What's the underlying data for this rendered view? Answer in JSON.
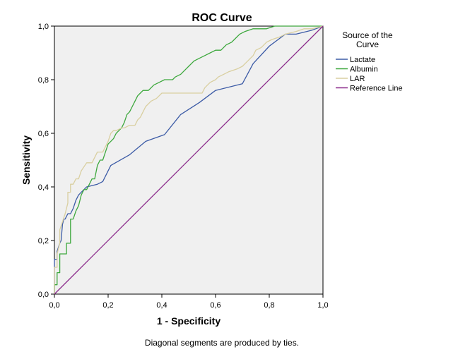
{
  "chart_data": {
    "type": "line",
    "title": "ROC Curve",
    "xlabel": "1 - Specificity",
    "ylabel": "Sensitivity",
    "xlim": [
      0,
      1
    ],
    "ylim": [
      0,
      1
    ],
    "xticks": [
      "0,0",
      "0,2",
      "0,4",
      "0,6",
      "0,8",
      "1,0"
    ],
    "yticks": [
      "0,0",
      "0,2",
      "0,4",
      "0,6",
      "0,8",
      "1,0"
    ],
    "grid": false,
    "legend_placement": "right",
    "legend_title": "Source of the Curve",
    "footnote": "Diagonal segments are produced by ties.",
    "background_color": "#f0f0f0",
    "series": [
      {
        "name": "Lactate",
        "color": "#3c5ba6",
        "points": [
          [
            0,
            0
          ],
          [
            0,
            0.13
          ],
          [
            0.01,
            0.13
          ],
          [
            0.01,
            0.16
          ],
          [
            0.02,
            0.19
          ],
          [
            0.025,
            0.2
          ],
          [
            0.03,
            0.26
          ],
          [
            0.035,
            0.28
          ],
          [
            0.04,
            0.28
          ],
          [
            0.05,
            0.3
          ],
          [
            0.06,
            0.3
          ],
          [
            0.07,
            0.32
          ],
          [
            0.08,
            0.35
          ],
          [
            0.09,
            0.37
          ],
          [
            0.1,
            0.38
          ],
          [
            0.12,
            0.4
          ],
          [
            0.14,
            0.405
          ],
          [
            0.16,
            0.41
          ],
          [
            0.18,
            0.42
          ],
          [
            0.21,
            0.48
          ],
          [
            0.28,
            0.52
          ],
          [
            0.34,
            0.57
          ],
          [
            0.41,
            0.595
          ],
          [
            0.47,
            0.67
          ],
          [
            0.54,
            0.715
          ],
          [
            0.6,
            0.76
          ],
          [
            0.7,
            0.785
          ],
          [
            0.74,
            0.86
          ],
          [
            0.8,
            0.925
          ],
          [
            0.86,
            0.97
          ],
          [
            0.88,
            0.97
          ],
          [
            0.9,
            0.97
          ],
          [
            0.96,
            0.985
          ],
          [
            1,
            1
          ]
        ]
      },
      {
        "name": "Albumin",
        "color": "#3da83d",
        "points": [
          [
            0,
            0
          ],
          [
            0,
            0.035
          ],
          [
            0.01,
            0.035
          ],
          [
            0.01,
            0.08
          ],
          [
            0.02,
            0.08
          ],
          [
            0.02,
            0.15
          ],
          [
            0.045,
            0.15
          ],
          [
            0.045,
            0.19
          ],
          [
            0.06,
            0.19
          ],
          [
            0.06,
            0.28
          ],
          [
            0.07,
            0.28
          ],
          [
            0.08,
            0.31
          ],
          [
            0.09,
            0.33
          ],
          [
            0.1,
            0.37
          ],
          [
            0.11,
            0.39
          ],
          [
            0.12,
            0.39
          ],
          [
            0.14,
            0.43
          ],
          [
            0.15,
            0.43
          ],
          [
            0.16,
            0.48
          ],
          [
            0.17,
            0.5
          ],
          [
            0.18,
            0.5
          ],
          [
            0.19,
            0.53
          ],
          [
            0.2,
            0.56
          ],
          [
            0.21,
            0.57
          ],
          [
            0.22,
            0.58
          ],
          [
            0.23,
            0.6
          ],
          [
            0.24,
            0.61
          ],
          [
            0.25,
            0.62
          ],
          [
            0.26,
            0.64
          ],
          [
            0.27,
            0.67
          ],
          [
            0.28,
            0.68
          ],
          [
            0.29,
            0.7
          ],
          [
            0.3,
            0.72
          ],
          [
            0.31,
            0.74
          ],
          [
            0.32,
            0.75
          ],
          [
            0.33,
            0.76
          ],
          [
            0.35,
            0.76
          ],
          [
            0.36,
            0.77
          ],
          [
            0.37,
            0.78
          ],
          [
            0.39,
            0.79
          ],
          [
            0.41,
            0.8
          ],
          [
            0.44,
            0.8
          ],
          [
            0.45,
            0.81
          ],
          [
            0.47,
            0.82
          ],
          [
            0.49,
            0.84
          ],
          [
            0.5,
            0.85
          ],
          [
            0.52,
            0.87
          ],
          [
            0.54,
            0.88
          ],
          [
            0.56,
            0.89
          ],
          [
            0.58,
            0.9
          ],
          [
            0.6,
            0.91
          ],
          [
            0.62,
            0.91
          ],
          [
            0.64,
            0.93
          ],
          [
            0.66,
            0.94
          ],
          [
            0.67,
            0.95
          ],
          [
            0.69,
            0.97
          ],
          [
            0.71,
            0.98
          ],
          [
            0.74,
            0.99
          ],
          [
            0.77,
            0.99
          ],
          [
            0.79,
            0.99
          ],
          [
            0.82,
            1
          ],
          [
            1,
            1
          ]
        ]
      },
      {
        "name": "LAR",
        "color": "#d9cfa0",
        "points": [
          [
            0,
            0
          ],
          [
            0,
            0.1
          ],
          [
            0.01,
            0.1
          ],
          [
            0.01,
            0.15
          ],
          [
            0.02,
            0.19
          ],
          [
            0.02,
            0.24
          ],
          [
            0.03,
            0.27
          ],
          [
            0.04,
            0.3
          ],
          [
            0.05,
            0.34
          ],
          [
            0.05,
            0.38
          ],
          [
            0.06,
            0.38
          ],
          [
            0.06,
            0.41
          ],
          [
            0.07,
            0.41
          ],
          [
            0.08,
            0.43
          ],
          [
            0.09,
            0.43
          ],
          [
            0.1,
            0.46
          ],
          [
            0.12,
            0.49
          ],
          [
            0.14,
            0.49
          ],
          [
            0.16,
            0.53
          ],
          [
            0.18,
            0.53
          ],
          [
            0.2,
            0.57
          ],
          [
            0.21,
            0.6
          ],
          [
            0.22,
            0.61
          ],
          [
            0.23,
            0.61
          ],
          [
            0.25,
            0.62
          ],
          [
            0.26,
            0.62
          ],
          [
            0.28,
            0.63
          ],
          [
            0.3,
            0.63
          ],
          [
            0.31,
            0.65
          ],
          [
            0.32,
            0.66
          ],
          [
            0.33,
            0.68
          ],
          [
            0.34,
            0.7
          ],
          [
            0.35,
            0.71
          ],
          [
            0.36,
            0.72
          ],
          [
            0.38,
            0.73
          ],
          [
            0.39,
            0.74
          ],
          [
            0.4,
            0.75
          ],
          [
            0.45,
            0.75
          ],
          [
            0.5,
            0.75
          ],
          [
            0.55,
            0.75
          ],
          [
            0.56,
            0.77
          ],
          [
            0.57,
            0.78
          ],
          [
            0.58,
            0.79
          ],
          [
            0.6,
            0.8
          ],
          [
            0.61,
            0.81
          ],
          [
            0.63,
            0.82
          ],
          [
            0.65,
            0.83
          ],
          [
            0.68,
            0.84
          ],
          [
            0.7,
            0.85
          ],
          [
            0.71,
            0.86
          ],
          [
            0.72,
            0.87
          ],
          [
            0.73,
            0.88
          ],
          [
            0.74,
            0.89
          ],
          [
            0.75,
            0.91
          ],
          [
            0.77,
            0.92
          ],
          [
            0.79,
            0.94
          ],
          [
            0.81,
            0.95
          ],
          [
            0.84,
            0.96
          ],
          [
            0.86,
            0.97
          ],
          [
            0.9,
            0.98
          ],
          [
            0.93,
            0.99
          ],
          [
            0.96,
            0.99
          ],
          [
            1,
            1
          ]
        ]
      },
      {
        "name": "Reference Line",
        "color": "#8b2a8b",
        "points": [
          [
            0,
            0
          ],
          [
            1,
            1
          ]
        ]
      }
    ]
  }
}
